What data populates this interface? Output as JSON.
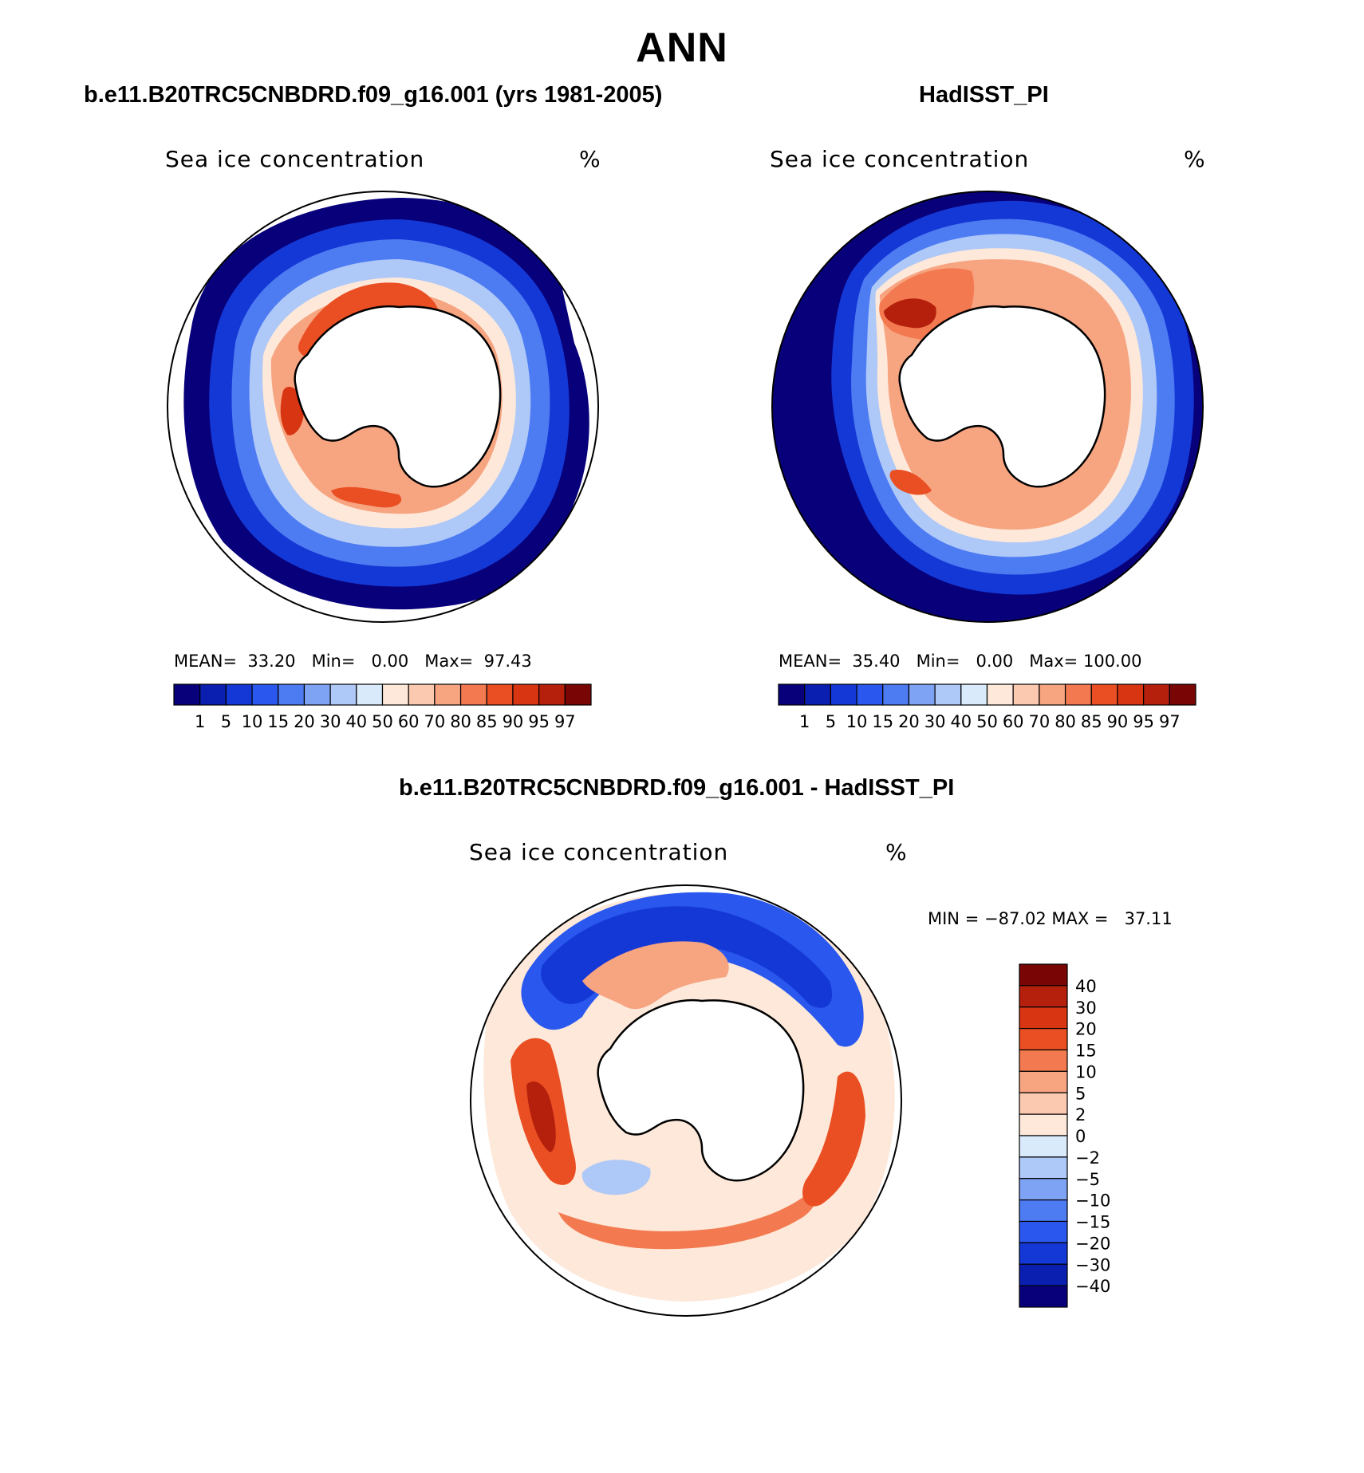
{
  "figure": {
    "title": "ANN"
  },
  "panels": [
    {
      "id": "model",
      "case_title": "b.e11.B20TRC5CNBDRD.f09_g16.001 (yrs 1981-2005)",
      "variable": "Sea ice concentration",
      "units": "%",
      "stats": {
        "mean_label": "MEAN=",
        "mean": "33.20",
        "min_label": "Min=",
        "min": "0.00",
        "max_label": "Max=",
        "max": "97.43"
      }
    },
    {
      "id": "obs",
      "case_title": "HadISST_PI",
      "variable": "Sea ice concentration",
      "units": "%",
      "stats": {
        "mean_label": "MEAN=",
        "mean": "35.40",
        "min_label": "Min=",
        "min": "0.00",
        "max_label": "Max=",
        "max": "100.00"
      }
    },
    {
      "id": "diff",
      "case_title": "b.e11.B20TRC5CNBDRD.f09_g16.001 - HadISST_PI",
      "variable": "Sea ice concentration",
      "units": "%",
      "stats": {
        "min_label": "MIN =",
        "min": "−87.02",
        "max_label": "MAX =",
        "max": "37.11"
      }
    }
  ],
  "colorbars": {
    "concentration": {
      "labels": [
        "1",
        "5",
        "10",
        "15",
        "20",
        "30",
        "40",
        "50",
        "60",
        "70",
        "80",
        "85",
        "90",
        "95",
        "97"
      ],
      "colors": [
        "#08007a",
        "#0a1fb0",
        "#1438d6",
        "#2a58ee",
        "#4d7bf2",
        "#7ea3f4",
        "#aec8f8",
        "#d9eafb",
        "#fde8d9",
        "#fbc8b0",
        "#f7a481",
        "#f37a50",
        "#ea4f23",
        "#d83512",
        "#b5200d",
        "#7a0505"
      ]
    },
    "difference": {
      "labels": [
        "40",
        "30",
        "20",
        "15",
        "10",
        "5",
        "2",
        "0",
        "−2",
        "−5",
        "−10",
        "−15",
        "−20",
        "−30",
        "−40"
      ],
      "colors": [
        "#7a0505",
        "#b5200d",
        "#d83512",
        "#ea4f23",
        "#f37a50",
        "#f7a481",
        "#fbc8b0",
        "#fde8d9",
        "#d9eafb",
        "#aec8f8",
        "#7ea3f4",
        "#4d7bf2",
        "#2a58ee",
        "#1438d6",
        "#0a1fb0",
        "#08007a"
      ]
    }
  }
}
